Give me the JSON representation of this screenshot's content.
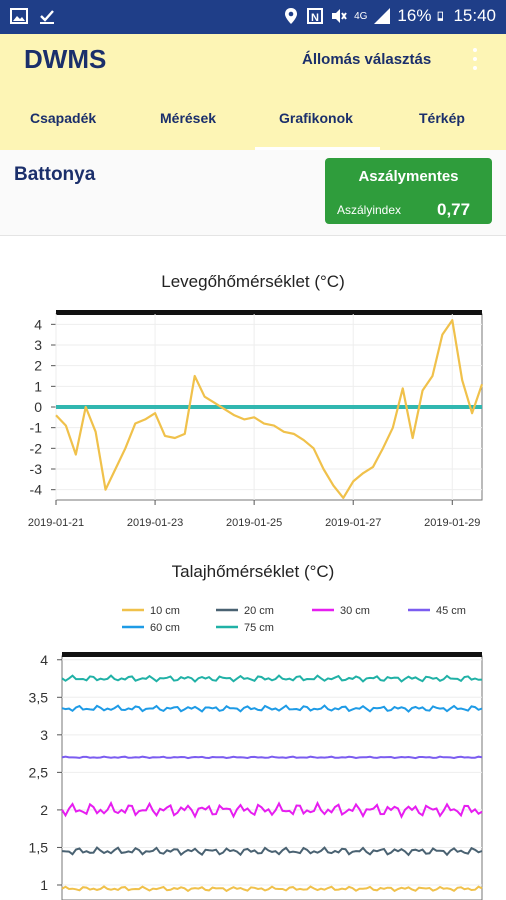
{
  "status_bar": {
    "battery": "16%",
    "time": "15:40",
    "network": "4G"
  },
  "app": {
    "title": "DWMS",
    "station_select": "Állomás választás"
  },
  "tabs": [
    "Csapadék",
    "Mérések",
    "Grafikonok",
    "Térkép"
  ],
  "station": {
    "name": "Battonya"
  },
  "drought": {
    "status": "Aszálymentes",
    "index_label": "Aszályindex",
    "index_value": "0,77"
  },
  "charts": {
    "air": {
      "title": "Levegőhőmérséklet (°C)"
    },
    "soil": {
      "title": "Talajhőmérséklet (°C)"
    }
  },
  "chart_data": [
    {
      "type": "line",
      "title": "Levegőhőmérséklet (°C)",
      "x_ticks": [
        "2019-01-21",
        "2019-01-23",
        "2019-01-25",
        "2019-01-27",
        "2019-01-29"
      ],
      "y_ticks": [
        "4",
        "3",
        "2",
        "1",
        "0",
        "-1",
        "-2",
        "-3",
        "-4"
      ],
      "ylim": [
        -4.5,
        4.5
      ],
      "x_range_days": [
        0,
        8.6
      ],
      "reference_line": 0,
      "colors": {
        "series": "#f0c14b",
        "reference": "#31b7b0"
      },
      "x": [
        0,
        0.2,
        0.4,
        0.6,
        0.8,
        1.0,
        1.2,
        1.4,
        1.6,
        1.8,
        2.0,
        2.2,
        2.4,
        2.6,
        2.8,
        3.0,
        3.2,
        3.4,
        3.6,
        3.8,
        4.0,
        4.2,
        4.4,
        4.6,
        4.8,
        5.0,
        5.2,
        5.4,
        5.6,
        5.8,
        6.0,
        6.2,
        6.4,
        6.6,
        6.8,
        7.0,
        7.2,
        7.4,
        7.6,
        7.8,
        8.0,
        8.2,
        8.4,
        8.6
      ],
      "values": [
        -0.4,
        -0.9,
        -2.3,
        0.0,
        -1.2,
        -4.0,
        -3.0,
        -2.0,
        -0.8,
        -0.6,
        -0.3,
        -1.4,
        -1.5,
        -1.3,
        1.5,
        0.5,
        0.2,
        -0.1,
        -0.4,
        -0.6,
        -0.5,
        -0.8,
        -0.9,
        -1.2,
        -1.3,
        -1.6,
        -2.0,
        -3.0,
        -3.8,
        -4.4,
        -3.6,
        -3.2,
        -2.9,
        -2.0,
        -1.0,
        0.9,
        -1.5,
        0.8,
        1.5,
        3.5,
        4.2,
        1.3,
        -0.3,
        1.1
      ]
    },
    {
      "type": "line",
      "title": "Talajhőmérséklet (°C)",
      "y_ticks": [
        "4",
        "3,5",
        "3",
        "2,5",
        "2",
        "1,5",
        "1"
      ],
      "ylim": [
        0.8,
        4.05
      ],
      "legend_position": "top",
      "series": [
        {
          "name": "10 cm",
          "color": "#f0c14b",
          "level": 0.95
        },
        {
          "name": "20 cm",
          "color": "#4a6272",
          "level": 1.45
        },
        {
          "name": "30 cm",
          "color": "#e61ef0",
          "level": 2.0
        },
        {
          "name": "45 cm",
          "color": "#7b5cf0",
          "level": 2.7
        },
        {
          "name": "60 cm",
          "color": "#1e9be6",
          "level": 3.35
        },
        {
          "name": "75 cm",
          "color": "#20b1a6",
          "level": 3.75
        }
      ]
    }
  ]
}
